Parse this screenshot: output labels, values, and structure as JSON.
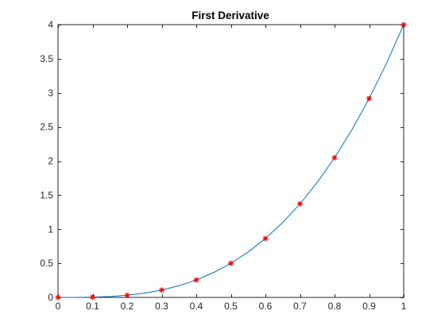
{
  "chart_data": {
    "type": "line",
    "title": "First Derivative",
    "xlabel": "",
    "ylabel": "",
    "xlim": [
      0,
      1
    ],
    "ylim": [
      0,
      4
    ],
    "x_ticks": [
      "0",
      "0.1",
      "0.2",
      "0.3",
      "0.4",
      "0.5",
      "0.6",
      "0.7",
      "0.8",
      "0.9",
      "1"
    ],
    "y_ticks": [
      "0",
      "0.5",
      "1",
      "1.5",
      "2",
      "2.5",
      "3",
      "3.5",
      "4"
    ],
    "grid": false,
    "box": true,
    "series": [
      {
        "style": "line",
        "color": "#0072BD",
        "x": [
          0,
          0.05,
          0.1,
          0.15,
          0.2,
          0.25,
          0.3,
          0.35,
          0.4,
          0.45,
          0.5,
          0.55,
          0.6,
          0.65,
          0.7,
          0.75,
          0.8,
          0.85,
          0.9,
          0.95,
          1
        ],
        "values": [
          0,
          0.0005,
          0.004,
          0.0135,
          0.032,
          0.0625,
          0.108,
          0.1715,
          0.256,
          0.3645,
          0.5,
          0.6655,
          0.864,
          1.0985,
          1.372,
          1.6875,
          2.048,
          2.4565,
          2.916,
          3.4295,
          4
        ]
      },
      {
        "style": "markers",
        "marker": "asterisk",
        "color": "#FF0000",
        "x": [
          0,
          0.1,
          0.2,
          0.3,
          0.4,
          0.5,
          0.6,
          0.7,
          0.8,
          0.9,
          1
        ],
        "values": [
          0,
          0.004,
          0.032,
          0.108,
          0.256,
          0.5,
          0.864,
          1.372,
          2.048,
          2.916,
          4
        ]
      }
    ]
  }
}
